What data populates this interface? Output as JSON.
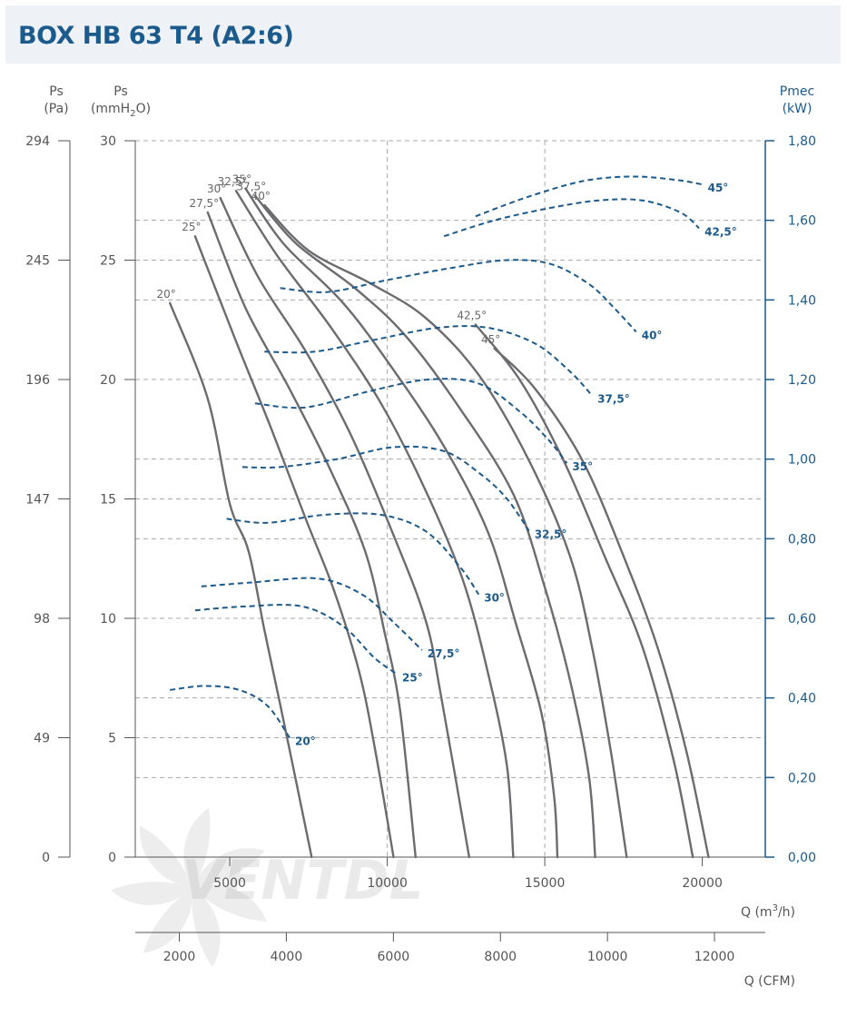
{
  "title": "BOX HB 63 T4 (A2:6)",
  "watermark": "VENTDL",
  "colors": {
    "pressure": "#6b6b70",
    "power": "#1b5a8c",
    "grid": "#a8a8a8",
    "title": "#1b5a8c"
  },
  "chart_data": {
    "type": "line",
    "axes": {
      "ps_pa": {
        "label": "Ps",
        "unit": "(Pa)",
        "ticks": [
          "294",
          "245",
          "196",
          "147",
          "98",
          "49",
          "0"
        ]
      },
      "ps_mmh2o": {
        "label": "Ps",
        "unit_prefix": "(mmH",
        "unit_sub": "2",
        "unit_suffix": "O)",
        "ticks": [
          "30",
          "25",
          "20",
          "15",
          "10",
          "5",
          "0"
        ],
        "ylim": [
          0,
          30
        ]
      },
      "pmec": {
        "label": "Pmec",
        "unit": "(kW)",
        "ticks": [
          "1,80",
          "1,60",
          "1,40",
          "1,20",
          "1,00",
          "0,80",
          "0,60",
          "0,40",
          "0,20",
          "0,00"
        ],
        "ylim": [
          0,
          1.8
        ]
      },
      "q_m3h": {
        "label_prefix": "Q (m",
        "label_sup": "3",
        "label_suffix": "/h)",
        "ticks": [
          "5000",
          "10000",
          "15000",
          "20000"
        ],
        "xlim": [
          2000,
          22000
        ]
      },
      "q_cfm": {
        "label": "Q (CFM)",
        "ticks": [
          "2000",
          "4000",
          "6000",
          "8000",
          "10000",
          "12000"
        ]
      }
    },
    "pressure_series": [
      {
        "name": "20°",
        "points": [
          [
            3100,
            23.2
          ],
          [
            4300,
            19.2
          ],
          [
            5000,
            14.8
          ],
          [
            5600,
            12.8
          ],
          [
            6100,
            9.5
          ],
          [
            6600,
            6.4
          ],
          [
            7100,
            3.2
          ],
          [
            7600,
            0
          ]
        ]
      },
      {
        "name": "25°",
        "points": [
          [
            3900,
            26.0
          ],
          [
            5200,
            21.6
          ],
          [
            6300,
            18.0
          ],
          [
            7400,
            14.2
          ],
          [
            8300,
            11.2
          ],
          [
            9100,
            7.8
          ],
          [
            9600,
            4.6
          ],
          [
            10200,
            0
          ]
        ]
      },
      {
        "name": "27,5°",
        "points": [
          [
            4300,
            27.0
          ],
          [
            5500,
            23.0
          ],
          [
            6900,
            19.6
          ],
          [
            8200,
            16.2
          ],
          [
            9300,
            12.8
          ],
          [
            9900,
            9.5
          ],
          [
            10400,
            6.2
          ],
          [
            10900,
            0
          ]
        ]
      },
      {
        "name": "30°",
        "points": [
          [
            4700,
            27.6
          ],
          [
            5900,
            24.3
          ],
          [
            7400,
            21.2
          ],
          [
            8800,
            17.8
          ],
          [
            10100,
            13.8
          ],
          [
            11200,
            10.0
          ],
          [
            11700,
            6.8
          ],
          [
            12600,
            0
          ]
        ]
      },
      {
        "name": "32,5°",
        "points": [
          [
            5200,
            27.9
          ],
          [
            6500,
            25.2
          ],
          [
            8200,
            22.2
          ],
          [
            9800,
            19.0
          ],
          [
            11200,
            15.4
          ],
          [
            12400,
            11.6
          ],
          [
            13200,
            7.7
          ],
          [
            13800,
            3.8
          ],
          [
            14000,
            0
          ]
        ]
      },
      {
        "name": "35°",
        "points": [
          [
            5500,
            28.0
          ],
          [
            6700,
            25.7
          ],
          [
            8600,
            23.2
          ],
          [
            10200,
            20.4
          ],
          [
            11800,
            17.2
          ],
          [
            13200,
            13.6
          ],
          [
            14100,
            9.7
          ],
          [
            14900,
            6.0
          ],
          [
            15300,
            2.5
          ],
          [
            15400,
            0
          ]
        ]
      },
      {
        "name": "37,5°",
        "points": [
          [
            5800,
            27.7
          ],
          [
            7100,
            25.7
          ],
          [
            9000,
            23.8
          ],
          [
            10600,
            21.8
          ],
          [
            12300,
            18.8
          ],
          [
            14000,
            15.2
          ],
          [
            15000,
            11.3
          ],
          [
            15800,
            7.4
          ],
          [
            16400,
            3.4
          ],
          [
            16600,
            0
          ]
        ]
      },
      {
        "name": "40°",
        "points": [
          [
            6100,
            27.3
          ],
          [
            7500,
            25.4
          ],
          [
            9500,
            24.0
          ],
          [
            11200,
            22.6
          ],
          [
            12900,
            20.2
          ],
          [
            14500,
            16.6
          ],
          [
            15800,
            12.6
          ],
          [
            16500,
            8.8
          ],
          [
            17100,
            4.4
          ],
          [
            17600,
            0
          ]
        ]
      },
      {
        "name": "42,5°",
        "points": [
          [
            12800,
            22.3
          ],
          [
            14200,
            20.0
          ],
          [
            15600,
            16.6
          ],
          [
            16900,
            12.6
          ],
          [
            18100,
            8.8
          ],
          [
            19100,
            4.0
          ],
          [
            19700,
            0
          ]
        ]
      },
      {
        "name": "45°",
        "points": [
          [
            13400,
            21.3
          ],
          [
            14700,
            19.6
          ],
          [
            16200,
            16.6
          ],
          [
            17500,
            12.6
          ],
          [
            18600,
            8.7
          ],
          [
            19500,
            4.4
          ],
          [
            20200,
            0
          ]
        ]
      }
    ],
    "power_series": [
      {
        "name": "20°",
        "points": [
          [
            3100,
            0.42
          ],
          [
            4200,
            0.43
          ],
          [
            5300,
            0.42
          ],
          [
            6200,
            0.38
          ],
          [
            6900,
            0.3
          ]
        ]
      },
      {
        "name": "25°",
        "points": [
          [
            3900,
            0.62
          ],
          [
            5500,
            0.63
          ],
          [
            7300,
            0.63
          ],
          [
            8600,
            0.58
          ],
          [
            9600,
            0.5
          ],
          [
            10300,
            0.46
          ]
        ]
      },
      {
        "name": "27,5°",
        "points": [
          [
            4100,
            0.68
          ],
          [
            5700,
            0.69
          ],
          [
            7800,
            0.7
          ],
          [
            9200,
            0.66
          ],
          [
            10200,
            0.59
          ],
          [
            11100,
            0.52
          ]
        ]
      },
      {
        "name": "30°",
        "points": [
          [
            4900,
            0.85
          ],
          [
            6200,
            0.84
          ],
          [
            8000,
            0.86
          ],
          [
            9800,
            0.86
          ],
          [
            11200,
            0.82
          ],
          [
            12300,
            0.73
          ],
          [
            12900,
            0.66
          ]
        ]
      },
      {
        "name": "32,5°",
        "points": [
          [
            5400,
            0.98
          ],
          [
            6600,
            0.98
          ],
          [
            8400,
            1.0
          ],
          [
            10200,
            1.03
          ],
          [
            11800,
            1.02
          ],
          [
            13000,
            0.96
          ],
          [
            13800,
            0.9
          ],
          [
            14500,
            0.82
          ]
        ]
      },
      {
        "name": "35°",
        "points": [
          [
            5800,
            1.14
          ],
          [
            7400,
            1.13
          ],
          [
            9400,
            1.17
          ],
          [
            11300,
            1.2
          ],
          [
            12900,
            1.19
          ],
          [
            14200,
            1.12
          ],
          [
            15100,
            1.05
          ],
          [
            15700,
            0.99
          ]
        ]
      },
      {
        "name": "37,5°",
        "points": [
          [
            6100,
            1.27
          ],
          [
            7700,
            1.27
          ],
          [
            9600,
            1.3
          ],
          [
            11600,
            1.33
          ],
          [
            13200,
            1.33
          ],
          [
            14700,
            1.29
          ],
          [
            15800,
            1.22
          ],
          [
            16500,
            1.16
          ]
        ]
      },
      {
        "name": "40°",
        "points": [
          [
            6600,
            1.43
          ],
          [
            8100,
            1.42
          ],
          [
            10000,
            1.45
          ],
          [
            12000,
            1.48
          ],
          [
            13800,
            1.5
          ],
          [
            15200,
            1.49
          ],
          [
            16400,
            1.44
          ],
          [
            17200,
            1.38
          ],
          [
            17900,
            1.32
          ]
        ]
      },
      {
        "name": "42,5°",
        "points": [
          [
            11800,
            1.56
          ],
          [
            13400,
            1.6
          ],
          [
            15100,
            1.63
          ],
          [
            16700,
            1.65
          ],
          [
            18100,
            1.65
          ],
          [
            19300,
            1.62
          ],
          [
            19900,
            1.58
          ]
        ]
      },
      {
        "name": "45°",
        "points": [
          [
            12800,
            1.61
          ],
          [
            14500,
            1.66
          ],
          [
            16300,
            1.7
          ],
          [
            17900,
            1.71
          ],
          [
            19300,
            1.7
          ],
          [
            20000,
            1.69
          ]
        ]
      }
    ]
  }
}
